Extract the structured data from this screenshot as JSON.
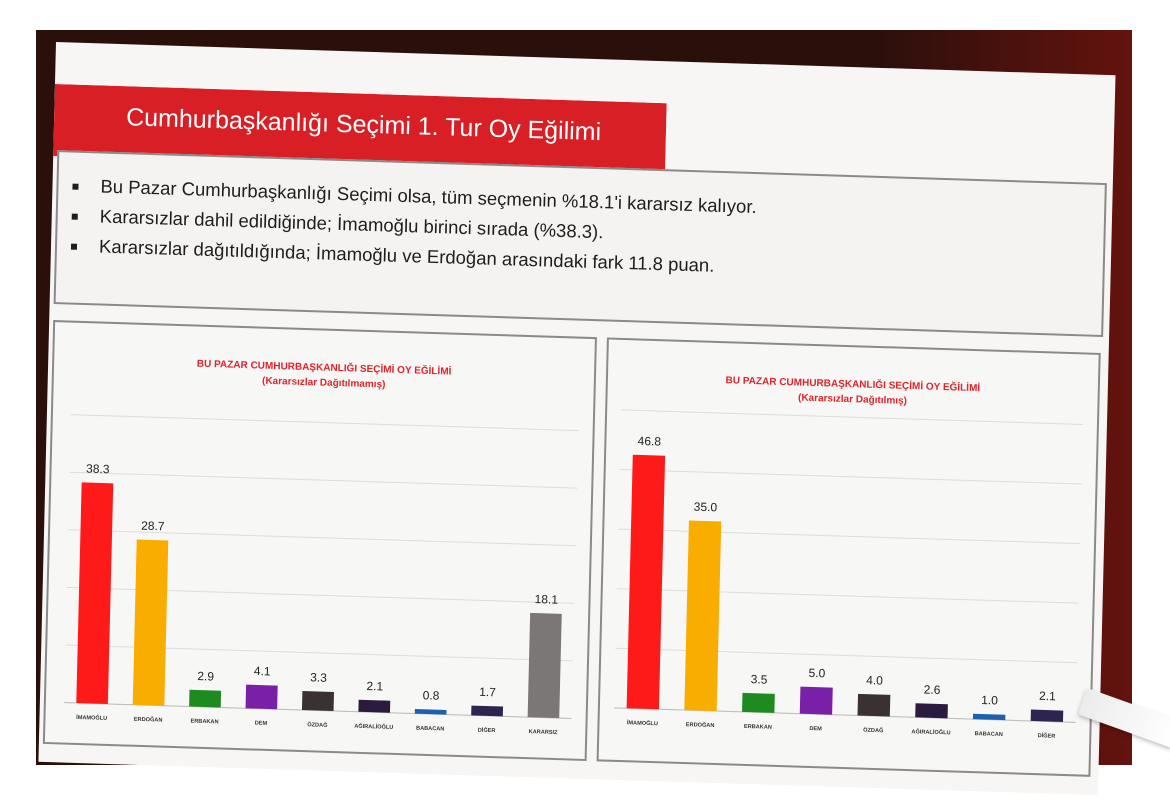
{
  "header": {
    "title": "Cumhurbaşkanlığı Seçimi 1. Tur Oy Eğilimi"
  },
  "bullets": [
    "Bu Pazar Cumhurbaşkanlığı Seçimi olsa, tüm seçmenin %18.1'i kararsız kalıyor.",
    "Kararsızlar dahil edildiğinde; İmamoğlu birinci sırada (%38.3).",
    "Kararsızlar dağıtıldığında; İmamoğlu ve Erdoğan arasındaki fark 11.8 puan."
  ],
  "colors": {
    "ribbon": "#d81f26",
    "title_red": "#e2232a"
  },
  "chart_data": [
    {
      "type": "bar",
      "title": "BU PAZAR CUMHURBAŞKANLIĞI SEÇİMİ OY EĞİLİMİ",
      "subtitle": "(Kararsızlar Dağıtılmamış)",
      "categories": [
        "İMAMOĞLU",
        "ERDOĞAN",
        "ERBAKAN",
        "DEM",
        "ÖZDAĞ",
        "AĞIRALİOĞLU",
        "BABACAN",
        "DİĞER",
        "KARARSIZ"
      ],
      "values": [
        38.3,
        28.7,
        2.9,
        4.1,
        3.3,
        2.1,
        0.8,
        1.7,
        18.1
      ],
      "value_labels": [
        "38.3",
        "28.7",
        "2.9",
        "4.1",
        "3.3",
        "2.1",
        "0.8",
        "1.7",
        "18.1"
      ],
      "colors": [
        "#ff1a1a",
        "#f9ad00",
        "#1f8a1f",
        "#7a1fa8",
        "#3a3232",
        "#2b1b3e",
        "#1f5fb0",
        "#2d2450",
        "#7b7777"
      ],
      "ylim": [
        0,
        50
      ],
      "grid": true
    },
    {
      "type": "bar",
      "title": "BU PAZAR CUMHURBAŞKANLIĞI SEÇİMİ OY EĞİLİMİ",
      "subtitle": "(Kararsızlar Dağıtılmış)",
      "categories": [
        "İMAMOĞLU",
        "ERDOĞAN",
        "ERBAKAN",
        "DEM",
        "ÖZDAĞ",
        "AĞIRALİOĞLU",
        "BABACAN",
        "DİĞER"
      ],
      "values": [
        46.8,
        35.0,
        3.5,
        5.0,
        4.0,
        2.6,
        1.0,
        2.1
      ],
      "value_labels": [
        "46.8",
        "35.0",
        "3.5",
        "5.0",
        "4.0",
        "2.6",
        "1.0",
        "2.1"
      ],
      "colors": [
        "#ff1a1a",
        "#f9ad00",
        "#1f8a1f",
        "#7a1fa8",
        "#3a3232",
        "#2b1b3e",
        "#1f5fb0",
        "#2d2450"
      ],
      "ylim": [
        0,
        55
      ],
      "grid": true
    }
  ]
}
